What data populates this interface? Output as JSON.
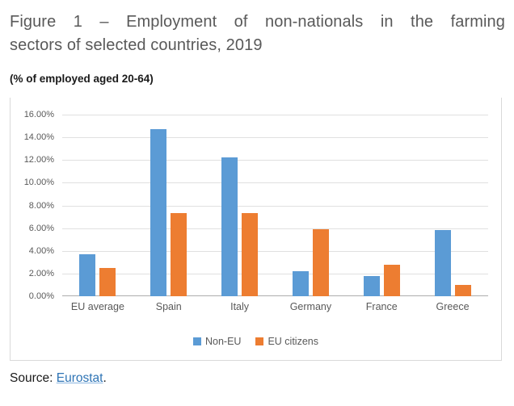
{
  "figure": {
    "title_lines": [
      "Figure 1 – Employment of non-nationals in the farming",
      "sectors of selected countries, 2019"
    ],
    "subtitle": "(% of employed aged 20-64)",
    "source": {
      "label": "Source: ",
      "link_text": "Eurostat",
      "suffix": "."
    }
  },
  "colors": {
    "non_eu_blue": "#5B9BD5",
    "eu_citizens_orange": "#ED7D31",
    "gridline": "#E0E0E0",
    "axis_line": "#ADADAD",
    "chart_border": "#D9D9D9",
    "gray_text": "#595959",
    "link_blue": "#2E74B5"
  },
  "chart_data": {
    "type": "bar",
    "title": "Employment of non-nationals in the farming sectors of selected countries, 2019",
    "subtitle": "(% of employed aged 20-64)",
    "xlabel": "",
    "ylabel": "% of employed aged 20-64",
    "categories": [
      "EU average",
      "Spain",
      "Italy",
      "Germany",
      "France",
      "Greece"
    ],
    "series": [
      {
        "name": "Non-EU",
        "color": "#5B9BD5",
        "values": [
          3.7,
          14.7,
          12.2,
          2.2,
          1.8,
          5.8
        ]
      },
      {
        "name": "EU citizens",
        "color": "#ED7D31",
        "values": [
          2.5,
          7.3,
          7.3,
          5.9,
          2.8,
          1.0
        ]
      }
    ],
    "ylim": [
      0,
      16
    ],
    "ytick_step": 2,
    "ytick_labels": [
      "0.00%",
      "2.00%",
      "4.00%",
      "6.00%",
      "8.00%",
      "10.00%",
      "12.00%",
      "14.00%",
      "16.00%"
    ],
    "grid": true,
    "legend_position": "bottom"
  }
}
